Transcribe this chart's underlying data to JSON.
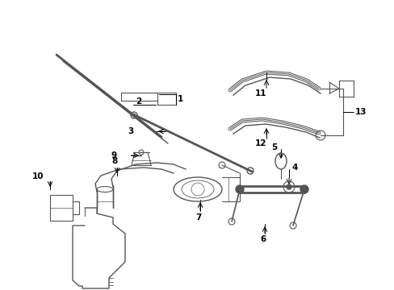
{
  "background_color": "#ffffff",
  "line_color": "#555555",
  "label_color": "#000000",
  "fig_width": 4.89,
  "fig_height": 3.6,
  "dpi": 100
}
